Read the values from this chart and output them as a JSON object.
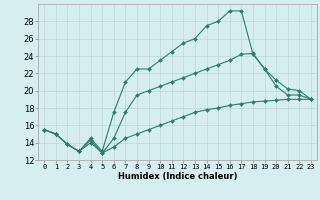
{
  "title": "",
  "xlabel": "Humidex (Indice chaleur)",
  "background_color": "#d6eef0",
  "grid_color": "#b8d8da",
  "line_color": "#2a7d6e",
  "line1_x": [
    0,
    1,
    2,
    3,
    4,
    5,
    6,
    7,
    8,
    9,
    10,
    11,
    12,
    13,
    14,
    15,
    16,
    17,
    18,
    19,
    20,
    21,
    22,
    23
  ],
  "line1_y": [
    15.5,
    15.0,
    13.8,
    13.0,
    14.5,
    13.0,
    17.5,
    21.0,
    22.5,
    22.5,
    23.5,
    24.5,
    25.5,
    26.0,
    27.5,
    28.0,
    29.2,
    29.2,
    24.2,
    22.5,
    21.2,
    20.2,
    20.0,
    19.0
  ],
  "line2_x": [
    0,
    1,
    2,
    3,
    4,
    5,
    6,
    7,
    8,
    9,
    10,
    11,
    12,
    13,
    14,
    15,
    16,
    17,
    18,
    19,
    20,
    21,
    22,
    23
  ],
  "line2_y": [
    15.5,
    15.0,
    13.8,
    13.0,
    14.3,
    12.8,
    14.5,
    17.5,
    19.5,
    20.0,
    20.5,
    21.0,
    21.5,
    22.0,
    22.5,
    23.0,
    23.5,
    24.2,
    24.3,
    22.5,
    20.5,
    19.5,
    19.5,
    19.0
  ],
  "line3_x": [
    0,
    1,
    2,
    3,
    4,
    5,
    6,
    7,
    8,
    9,
    10,
    11,
    12,
    13,
    14,
    15,
    16,
    17,
    18,
    19,
    20,
    21,
    22,
    23
  ],
  "line3_y": [
    15.5,
    15.0,
    13.8,
    13.0,
    14.0,
    12.8,
    13.5,
    14.5,
    15.0,
    15.5,
    16.0,
    16.5,
    17.0,
    17.5,
    17.8,
    18.0,
    18.3,
    18.5,
    18.7,
    18.8,
    18.9,
    19.0,
    19.0,
    19.0
  ],
  "ylim": [
    12,
    30
  ],
  "xlim": [
    -0.5,
    23.5
  ],
  "yticks": [
    12,
    14,
    16,
    18,
    20,
    22,
    24,
    26,
    28
  ],
  "xticks": [
    0,
    1,
    2,
    3,
    4,
    5,
    6,
    7,
    8,
    9,
    10,
    11,
    12,
    13,
    14,
    15,
    16,
    17,
    18,
    19,
    20,
    21,
    22,
    23
  ],
  "xlabel_fontsize": 6,
  "tick_fontsize": 5,
  "ytick_fontsize": 6,
  "linewidth": 0.8,
  "markersize": 2.0
}
